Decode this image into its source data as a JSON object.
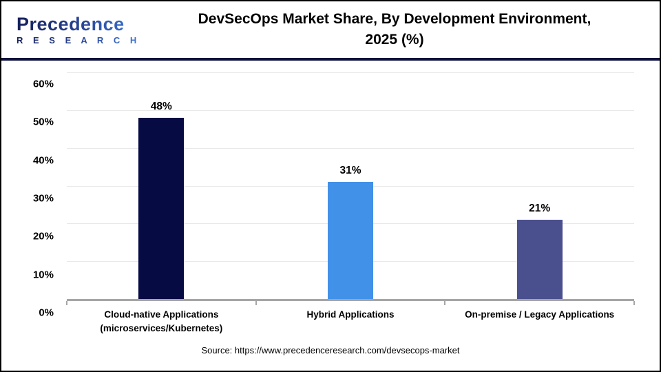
{
  "header": {
    "logo_word": "Precedence",
    "logo_sub": "R E S E A R C H",
    "title_line1": "DevSecOps Market Share, By Development Environment,",
    "title_line2": "2025 (%)"
  },
  "colors": {
    "divider": "#0d123c",
    "axis_line": "#a6a6a6",
    "gridline": "#e9e9e9",
    "title_text": "#000000"
  },
  "chart_data": {
    "type": "bar",
    "title": "DevSecOps Market Share, By Development Environment, 2025 (%)",
    "categories": [
      "Cloud-native Applications\n(microservices/Kubernetes)",
      "Hybrid Applications",
      "On-premise / Legacy Applications"
    ],
    "values": [
      48,
      31,
      21
    ],
    "value_labels": [
      "48%",
      "31%",
      "21%"
    ],
    "bar_colors": [
      "#070b44",
      "#4191e9",
      "#4a508e"
    ],
    "xlabel": "",
    "ylabel": "",
    "ylim": [
      0,
      60
    ],
    "ytick_values": [
      0,
      10,
      20,
      30,
      40,
      50,
      60
    ],
    "ytick_labels": [
      "0%",
      "10%",
      "20%",
      "30%",
      "40%",
      "50%",
      "60%"
    ],
    "grid": "horizontal",
    "legend": false
  },
  "footer": {
    "source": "Source: https://www.precedenceresearch.com/devsecops-market"
  }
}
